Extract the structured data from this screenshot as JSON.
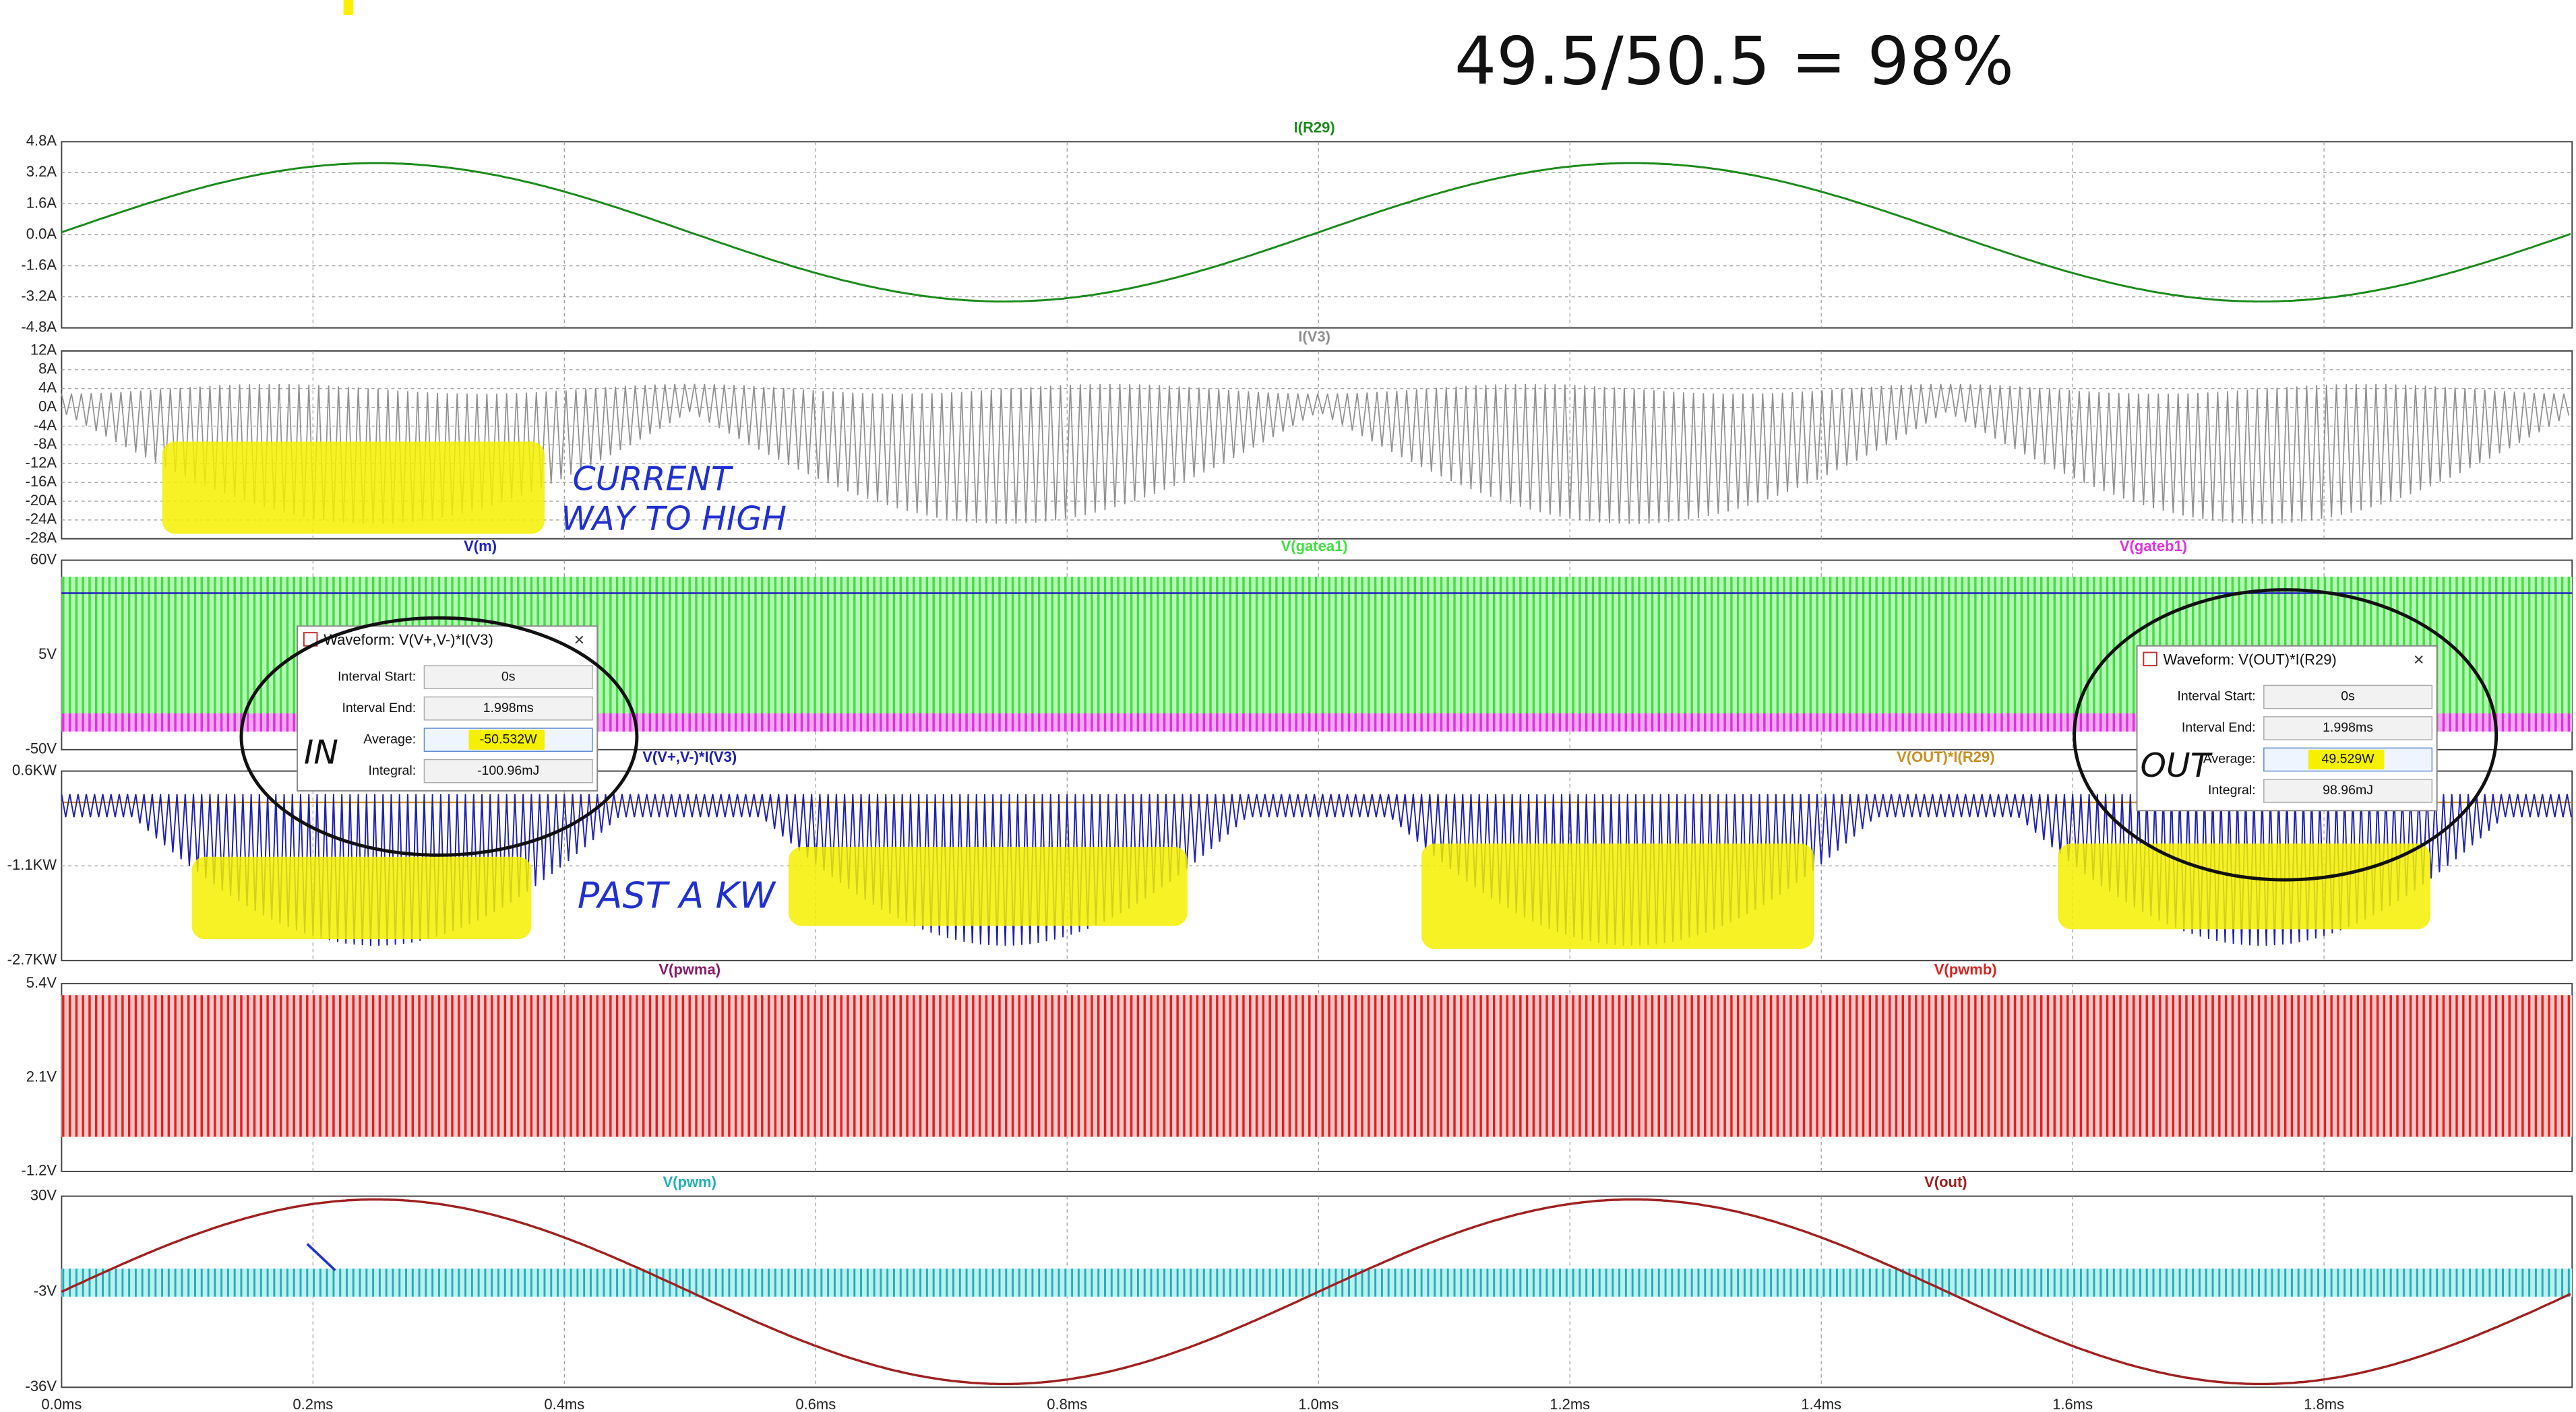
{
  "top_note": "49.5/50.5 = 98%",
  "panes": [
    {
      "traces": [
        {
          "name": "I(R29)",
          "color": "#1a8a1a"
        }
      ],
      "yticks": [
        "4.8A",
        "3.2A",
        "1.6A",
        "0.0A",
        "-1.6A",
        "-3.2A",
        "-4.8A"
      ]
    },
    {
      "traces": [
        {
          "name": "I(V3)",
          "color": "#909090"
        }
      ],
      "yticks": [
        "12A",
        "8A",
        "4A",
        "0A",
        "-4A",
        "-8A",
        "-12A",
        "-16A",
        "-20A",
        "-24A",
        "-28A"
      ]
    },
    {
      "traces": [
        {
          "name": "V(m)",
          "color": "#2020c0"
        },
        {
          "name": "V(gatea1)",
          "color": "#40e040"
        },
        {
          "name": "V(gateb1)",
          "color": "#e030e0"
        }
      ],
      "yticks": [
        "60V",
        "5V",
        "-50V"
      ]
    },
    {
      "traces": [
        {
          "name": "V(V+,V-)*I(V3)",
          "color": "#2020b0"
        },
        {
          "name": "V(OUT)*I(R29)",
          "color": "#c89020"
        }
      ],
      "yticks": [
        "0.6KW",
        "-1.1KW",
        "-2.7KW"
      ]
    },
    {
      "traces": [
        {
          "name": "V(pwma)",
          "color": "#8a1a6a"
        },
        {
          "name": "V(pwmb)",
          "color": "#e02020"
        }
      ],
      "yticks": [
        "5.4V",
        "2.1V",
        "-1.2V"
      ]
    },
    {
      "traces": [
        {
          "name": "V(pwm)",
          "color": "#20b0b8"
        },
        {
          "name": "V(out)",
          "color": "#a02020"
        }
      ],
      "yticks": [
        "30V",
        "-3V",
        "-36V"
      ]
    }
  ],
  "xticks": [
    "0.0ms",
    "0.2ms",
    "0.4ms",
    "0.6ms",
    "0.8ms",
    "1.0ms",
    "1.2ms",
    "1.4ms",
    "1.6ms",
    "1.8ms"
  ],
  "dialogs": [
    {
      "title": "Waveform: V(V+,V-)*I(V3)",
      "fields": [
        {
          "label": "Interval Start:",
          "value": "0s"
        },
        {
          "label": "Interval End:",
          "value": "1.998ms"
        },
        {
          "label": "Average:",
          "value": "-50.532W"
        },
        {
          "label": "Integral:",
          "value": "-100.96mJ"
        }
      ]
    },
    {
      "title": "Waveform: V(OUT)*I(R29)",
      "fields": [
        {
          "label": "Interval Start:",
          "value": "0s"
        },
        {
          "label": "Interval End:",
          "value": "1.998ms"
        },
        {
          "label": "Average:",
          "value": "49.529W"
        },
        {
          "label": "Integral:",
          "value": "98.96mJ"
        }
      ]
    }
  ],
  "notes": [
    "CURRENT",
    "WAY TO HIGH",
    "PAST A KW",
    "IN",
    "OUT"
  ]
}
